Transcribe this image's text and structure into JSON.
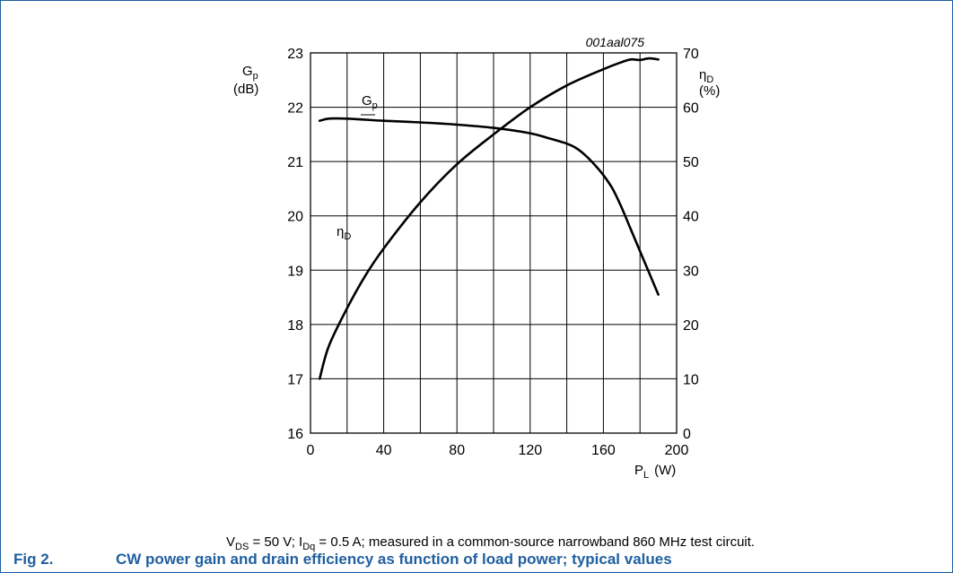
{
  "chart_data": {
    "type": "line",
    "xlabel": "P",
    "xlabel_sub": "L",
    "xlabel_unit": "(W)",
    "ylabel_left": "G",
    "ylabel_left_sub": "p",
    "ylabel_left_unit": "(dB)",
    "ylabel_right": "η",
    "ylabel_right_sub": "D",
    "ylabel_right_unit": "(%)",
    "xlim": [
      0,
      200
    ],
    "ylim_left": [
      16,
      23
    ],
    "ylim_right": [
      0,
      70
    ],
    "grid": true,
    "x_ticks": [
      "0",
      "40",
      "80",
      "120",
      "160",
      "200"
    ],
    "y_left_ticks": [
      "16",
      "17",
      "18",
      "19",
      "20",
      "21",
      "22",
      "23"
    ],
    "y_right_ticks": [
      "0",
      "10",
      "20",
      "30",
      "40",
      "50",
      "60",
      "70"
    ],
    "reference": "001aal075",
    "series": [
      {
        "name": "G",
        "name_sub": "p",
        "axis": "left",
        "x": [
          5,
          10,
          20,
          30,
          40,
          60,
          80,
          100,
          120,
          130,
          140,
          145,
          150,
          155,
          160,
          165,
          170,
          175,
          180,
          185,
          190
        ],
        "y": [
          21.75,
          21.79,
          21.79,
          21.77,
          21.75,
          21.72,
          21.68,
          21.62,
          21.52,
          21.43,
          21.33,
          21.25,
          21.12,
          20.95,
          20.75,
          20.5,
          20.15,
          19.75,
          19.35,
          18.95,
          18.55
        ]
      },
      {
        "name": "η",
        "name_sub": "D",
        "axis": "right",
        "x": [
          5,
          10,
          20,
          30,
          40,
          60,
          80,
          100,
          120,
          140,
          160,
          170,
          175,
          180,
          185,
          190
        ],
        "y": [
          10,
          16,
          23,
          29,
          34,
          42.5,
          49.5,
          55,
          60,
          64,
          67,
          68.3,
          68.8,
          68.7,
          69,
          68.8
        ]
      }
    ]
  },
  "caption": {
    "figure_number": "Fig 2.",
    "title": "CW power gain and drain efficiency as function of load power; typical values"
  },
  "conditions": {
    "v": "V",
    "v_sub": "DS",
    "v_rest": " = 50 V; I",
    "i_sub": "Dq",
    "rest": " = 0.5 A; measured in a common-source narrowband 860 MHz test circuit."
  }
}
